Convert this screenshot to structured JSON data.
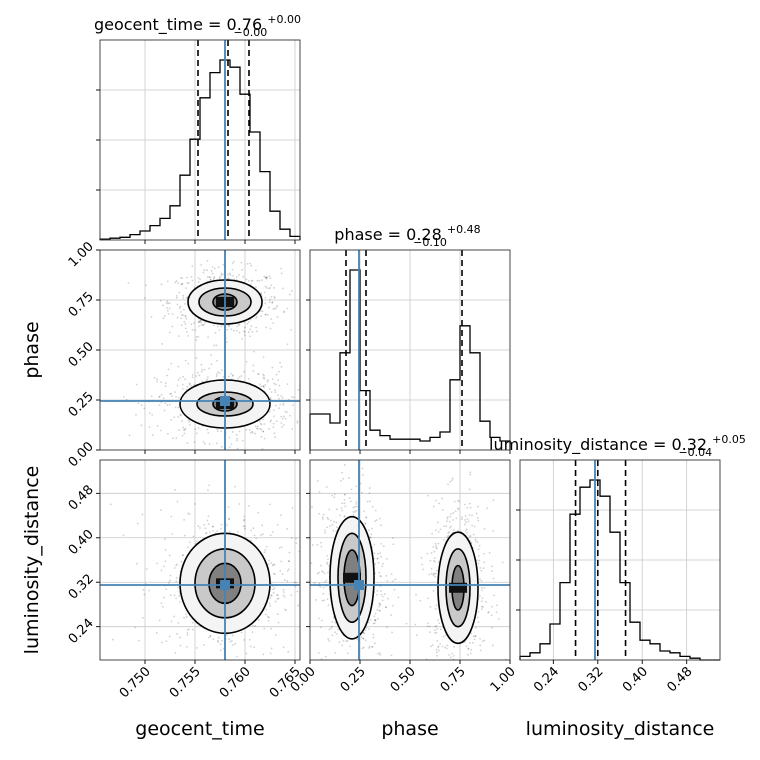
{
  "chart_data": {
    "type": "corner",
    "parameters": [
      "geocent_time",
      "phase",
      "luminosity_distance"
    ],
    "axis_labels": [
      "geocent_time",
      "phase",
      "luminosity_distance"
    ],
    "ranges": {
      "geocent_time": [
        0.7455,
        0.7655
      ],
      "phase": [
        0.0,
        1.0
      ],
      "luminosity_distance": [
        0.18,
        0.54
      ]
    },
    "ticks": {
      "geocent_time": [
        "0.750",
        "0.755",
        "0.760",
        "0.765"
      ],
      "phase": [
        "0.00",
        "0.25",
        "0.50",
        "0.75",
        "1.00"
      ],
      "luminosity_distance": [
        "0.24",
        "0.32",
        "0.40",
        "0.48"
      ]
    },
    "tick_values": {
      "geocent_time": [
        0.75,
        0.755,
        0.76,
        0.765
      ],
      "phase": [
        0.0,
        0.25,
        0.5,
        0.75,
        1.0
      ],
      "luminosity_distance": [
        0.24,
        0.32,
        0.4,
        0.48
      ]
    },
    "truths": {
      "geocent_time": 0.758,
      "phase": 0.245,
      "luminosity_distance": 0.315
    },
    "truth_color": "#4682b4",
    "titles": [
      {
        "param": "geocent_time",
        "name": "geocent_time",
        "median": "0.76",
        "plus": "+0.00",
        "minus": "−0.00"
      },
      {
        "param": "phase",
        "name": "phase",
        "median": "0.28",
        "plus": "+0.48",
        "minus": "−0.10"
      },
      {
        "param": "luminosity_distance",
        "name": "luminosity_distance",
        "median": "0.32",
        "plus": "+0.05",
        "minus": "−0.04"
      }
    ],
    "histograms": {
      "geocent_time": {
        "edges": [
          0.7455,
          0.7465,
          0.7475,
          0.7485,
          0.7495,
          0.7505,
          0.7515,
          0.7525,
          0.7535,
          0.7545,
          0.7555,
          0.7565,
          0.7575,
          0.7585,
          0.7595,
          0.7605,
          0.7615,
          0.7625,
          0.7635,
          0.7645,
          0.7655
        ],
        "counts": [
          0.005,
          0.01,
          0.015,
          0.03,
          0.05,
          0.08,
          0.12,
          0.19,
          0.36,
          0.56,
          0.79,
          0.93,
          1.0,
          0.96,
          0.81,
          0.6,
          0.38,
          0.16,
          0.06,
          0.02
        ],
        "quantiles": [
          0.7553,
          0.7583,
          0.7604
        ]
      },
      "phase": {
        "edges": [
          0.0,
          0.05,
          0.1,
          0.15,
          0.2,
          0.25,
          0.3,
          0.35,
          0.4,
          0.45,
          0.5,
          0.55,
          0.6,
          0.65,
          0.7,
          0.75,
          0.8,
          0.85,
          0.9,
          0.95,
          1.0
        ],
        "counts": [
          0.2,
          0.2,
          0.15,
          0.54,
          1.0,
          0.33,
          0.11,
          0.08,
          0.06,
          0.06,
          0.06,
          0.05,
          0.07,
          0.1,
          0.39,
          0.69,
          0.54,
          0.16,
          0.07,
          0.05
        ],
        "quantiles": [
          0.18,
          0.28,
          0.76
        ]
      },
      "luminosity_distance": {
        "edges": [
          0.18,
          0.198,
          0.216,
          0.234,
          0.252,
          0.27,
          0.288,
          0.306,
          0.324,
          0.342,
          0.36,
          0.378,
          0.396,
          0.414,
          0.432,
          0.45,
          0.468,
          0.486,
          0.504,
          0.522,
          0.54
        ],
        "counts": [
          0.02,
          0.04,
          0.09,
          0.2,
          0.43,
          0.81,
          0.96,
          1.0,
          0.91,
          0.71,
          0.43,
          0.21,
          0.11,
          0.09,
          0.05,
          0.04,
          0.02,
          0.01,
          0.0,
          0.0
        ],
        "quantiles": [
          0.28,
          0.32,
          0.37
        ]
      }
    },
    "contours_2d": [
      {
        "x": "geocent_time",
        "y": "phase",
        "modes": [
          {
            "center": [
              0.758,
              0.74
            ],
            "levels": [
              [
                0.0037,
                0.11
              ],
              [
                0.0026,
                0.07
              ],
              [
                0.0012,
                0.04
              ]
            ]
          },
          {
            "center": [
              0.758,
              0.23
            ],
            "levels": [
              [
                0.0045,
                0.12
              ],
              [
                0.0028,
                0.06
              ],
              [
                0.0012,
                0.035
              ]
            ]
          }
        ]
      },
      {
        "x": "geocent_time",
        "y": "luminosity_distance",
        "modes": [
          {
            "center": [
              0.758,
              0.318
            ],
            "levels": [
              [
                0.0045,
                0.09
              ],
              [
                0.003,
                0.062
              ],
              [
                0.0016,
                0.036
              ]
            ]
          }
        ]
      },
      {
        "x": "phase",
        "y": "luminosity_distance",
        "modes": [
          {
            "center": [
              0.21,
              0.328
            ],
            "levels": [
              [
                0.11,
                0.11
              ],
              [
                0.07,
                0.08
              ],
              [
                0.04,
                0.05
              ]
            ]
          },
          {
            "center": [
              0.74,
              0.31
            ],
            "levels": [
              [
                0.1,
                0.1
              ],
              [
                0.06,
                0.07
              ],
              [
                0.03,
                0.04
              ]
            ]
          }
        ]
      }
    ]
  }
}
